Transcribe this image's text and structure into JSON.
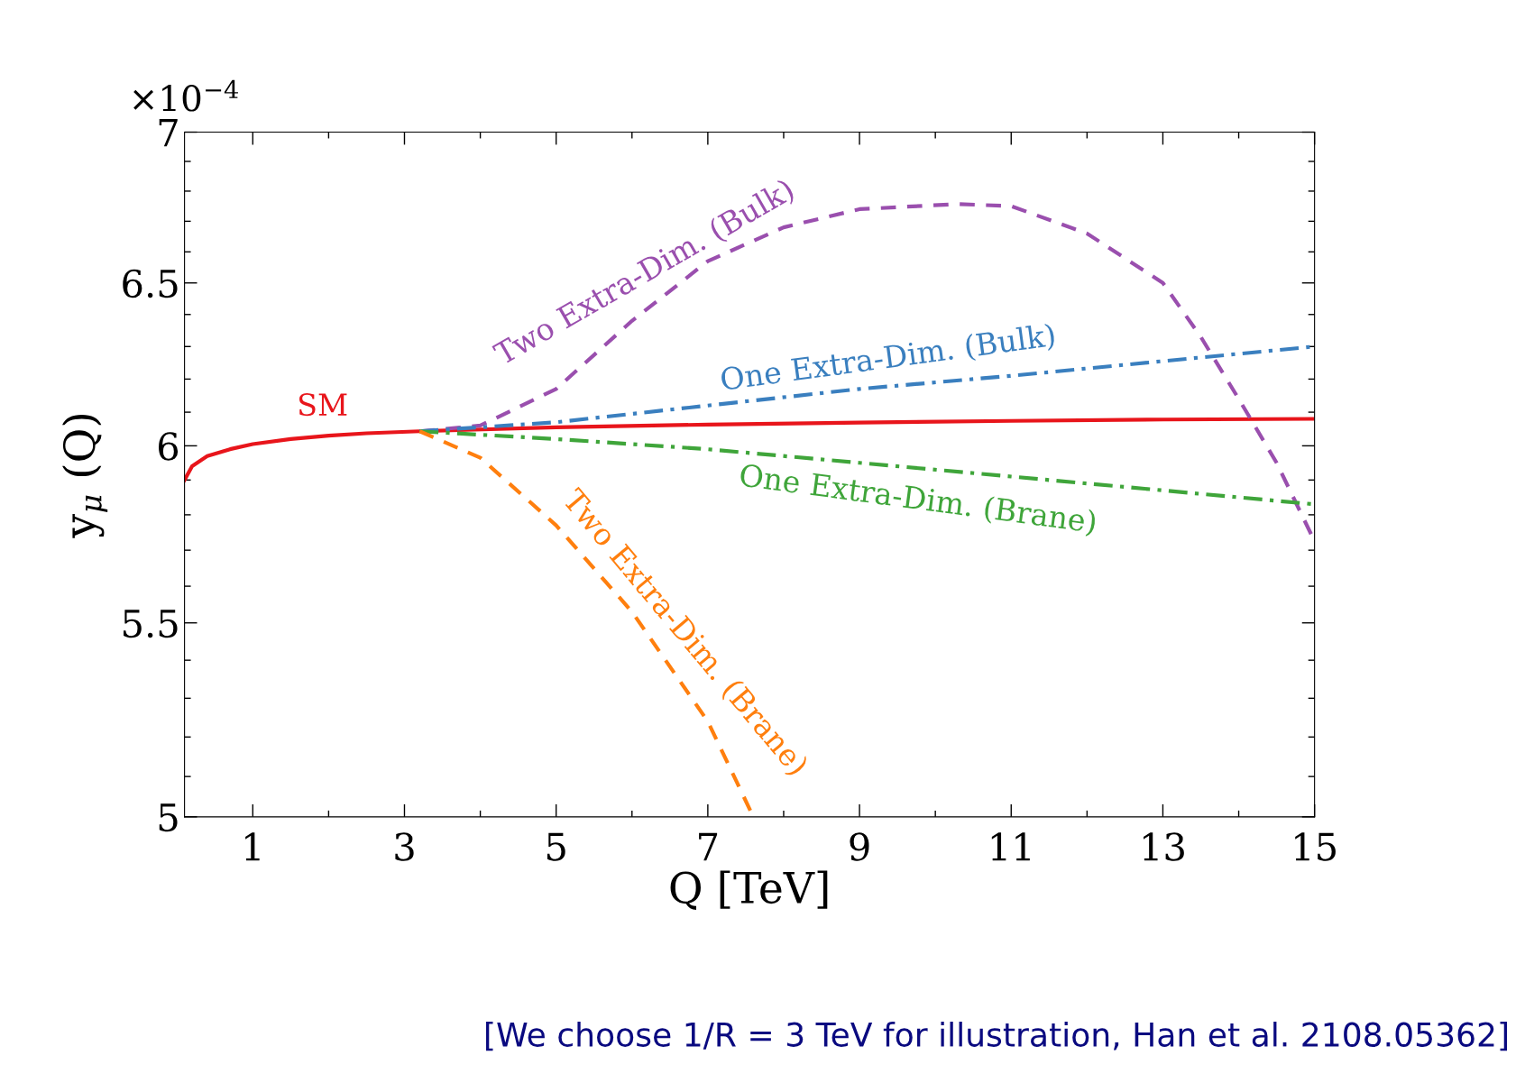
{
  "chart_data": {
    "type": "line",
    "xlabel": "Q [TeV]",
    "ylabel": "y$_{μ}$ (Q)",
    "log": "y",
    "xlim": [
      0.1,
      15
    ],
    "xticks": [
      1,
      3,
      5,
      7,
      9,
      11,
      13,
      15
    ],
    "ylim": [
      5,
      7
    ],
    "yticks": [
      5,
      5.5,
      6,
      6.5,
      7
    ],
    "grid": false,
    "legend": false,
    "annotations": [
      "×10$^{−4}$",
      "[We choose 1/R = 3 TeV for illustration, Han et al. 2108.05362]"
    ],
    "series": [
      {
        "name": "SM",
        "color": "#e8151b",
        "line_style": "solid",
        "x": [
          0.1,
          0.2,
          0.4,
          0.7,
          1,
          1.5,
          2,
          2.5,
          3.2,
          5,
          7,
          9,
          11,
          13,
          15
        ],
        "values": [
          5.9,
          5.94,
          5.97,
          5.99,
          6.005,
          6.02,
          6.03,
          6.037,
          6.043,
          6.055,
          6.063,
          6.069,
          6.074,
          6.078,
          6.08
        ]
      },
      {
        "name": "Two Extra-Dim. (Bulk)",
        "color": "#9a4fae",
        "line_style": "dashed",
        "x": [
          3.2,
          4,
          5,
          6,
          7,
          8,
          9,
          10.3,
          11,
          12,
          13,
          13.5,
          14,
          14.5,
          15
        ],
        "values": [
          6.043,
          6.06,
          6.17,
          6.38,
          6.57,
          6.68,
          6.74,
          6.757,
          6.75,
          6.66,
          6.5,
          6.33,
          6.14,
          5.95,
          5.725
        ]
      },
      {
        "name": "One Extra-Dim. (Bulk)",
        "color": "#3a7fbf",
        "line_style": "dashdot",
        "x": [
          3.2,
          5,
          7,
          9,
          11,
          13,
          15
        ],
        "values": [
          6.043,
          6.07,
          6.12,
          6.17,
          6.21,
          6.255,
          6.3
        ]
      },
      {
        "name": "One Extra-Dim. (Brane)",
        "color": "#3fa53a",
        "line_style": "dashdot",
        "x": [
          3.2,
          5,
          7,
          9,
          11,
          13,
          15
        ],
        "values": [
          6.043,
          6.02,
          5.99,
          5.95,
          5.91,
          5.87,
          5.83
        ]
      },
      {
        "name": "Two Extra-Dim. (Brane)",
        "color": "#ff7f0e",
        "line_style": "dashed",
        "x": [
          3.2,
          4,
          5,
          6,
          7,
          7.6
        ],
        "values": [
          6.043,
          5.965,
          5.77,
          5.53,
          5.24,
          5.0
        ]
      }
    ]
  }
}
